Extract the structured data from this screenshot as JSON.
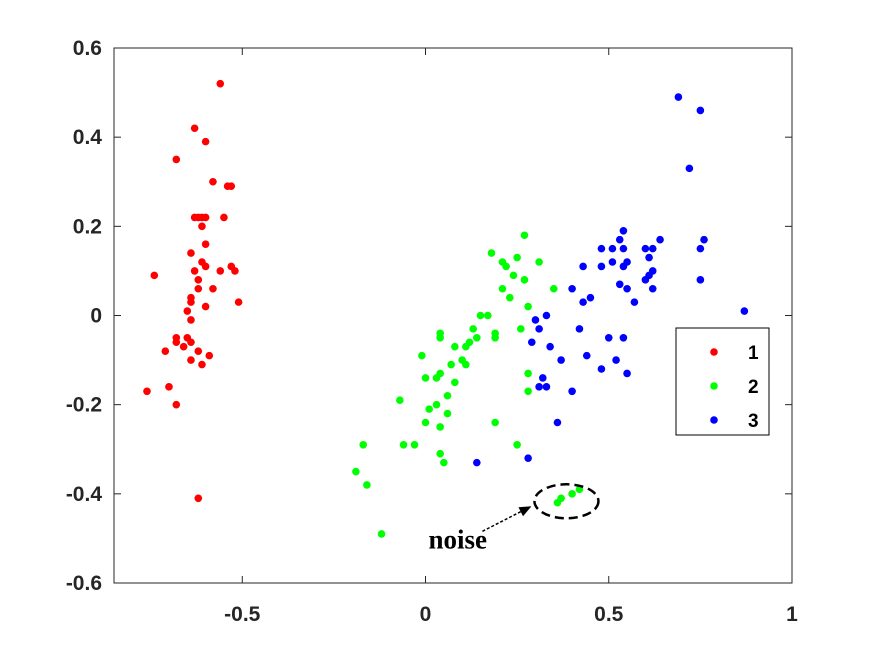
{
  "chart_data": {
    "type": "scatter",
    "title": "",
    "xlabel": "",
    "ylabel": "",
    "xlim": [
      -0.85,
      1.0
    ],
    "ylim": [
      -0.6,
      0.6
    ],
    "xticks": [
      -0.5,
      0,
      0.5,
      1
    ],
    "xtick_labels": [
      "-0.5",
      "0",
      "0.5",
      "1"
    ],
    "yticks": [
      -0.6,
      -0.4,
      -0.2,
      0,
      0.2,
      0.4,
      0.6
    ],
    "ytick_labels": [
      "-0.6",
      "-0.4",
      "-0.2",
      "0",
      "0.2",
      "0.4",
      "0.6"
    ],
    "grid": false,
    "legend_position": "right",
    "series": [
      {
        "name": "1",
        "color": "#ff0000",
        "points": [
          [
            -0.56,
            0.52
          ],
          [
            -0.63,
            0.42
          ],
          [
            -0.6,
            0.39
          ],
          [
            -0.68,
            0.35
          ],
          [
            -0.58,
            0.3
          ],
          [
            -0.53,
            0.29
          ],
          [
            -0.54,
            0.29
          ],
          [
            -0.63,
            0.22
          ],
          [
            -0.62,
            0.22
          ],
          [
            -0.61,
            0.22
          ],
          [
            -0.6,
            0.22
          ],
          [
            -0.55,
            0.22
          ],
          [
            -0.61,
            0.2
          ],
          [
            -0.6,
            0.16
          ],
          [
            -0.64,
            0.14
          ],
          [
            -0.61,
            0.12
          ],
          [
            -0.6,
            0.11
          ],
          [
            -0.53,
            0.11
          ],
          [
            -0.52,
            0.1
          ],
          [
            -0.56,
            0.1
          ],
          [
            -0.63,
            0.1
          ],
          [
            -0.74,
            0.09
          ],
          [
            -0.62,
            0.08
          ],
          [
            -0.58,
            0.06
          ],
          [
            -0.62,
            0.06
          ],
          [
            -0.64,
            0.04
          ],
          [
            -0.64,
            0.03
          ],
          [
            -0.6,
            0.02
          ],
          [
            -0.65,
            0.01
          ],
          [
            -0.51,
            0.03
          ],
          [
            -0.64,
            -0.01
          ],
          [
            -0.68,
            -0.05
          ],
          [
            -0.65,
            -0.05
          ],
          [
            -0.64,
            -0.06
          ],
          [
            -0.68,
            -0.06
          ],
          [
            -0.66,
            -0.07
          ],
          [
            -0.62,
            -0.08
          ],
          [
            -0.71,
            -0.08
          ],
          [
            -0.59,
            -0.09
          ],
          [
            -0.64,
            -0.1
          ],
          [
            -0.61,
            -0.11
          ],
          [
            -0.7,
            -0.16
          ],
          [
            -0.76,
            -0.17
          ],
          [
            -0.68,
            -0.2
          ],
          [
            -0.62,
            -0.41
          ]
        ]
      },
      {
        "name": "2",
        "color": "#00ff00",
        "points": [
          [
            0.27,
            0.18
          ],
          [
            0.18,
            0.14
          ],
          [
            0.25,
            0.13
          ],
          [
            0.21,
            0.12
          ],
          [
            0.31,
            0.12
          ],
          [
            0.22,
            0.11
          ],
          [
            0.24,
            0.09
          ],
          [
            0.27,
            0.08
          ],
          [
            0.21,
            0.06
          ],
          [
            0.35,
            0.06
          ],
          [
            0.23,
            0.04
          ],
          [
            0.28,
            0.02
          ],
          [
            0.15,
            0.0
          ],
          [
            0.17,
            0.0
          ],
          [
            0.26,
            -0.03
          ],
          [
            0.13,
            -0.03
          ],
          [
            0.19,
            -0.04
          ],
          [
            0.14,
            -0.05
          ],
          [
            0.04,
            -0.04
          ],
          [
            0.04,
            -0.05
          ],
          [
            0.19,
            -0.05
          ],
          [
            0.12,
            -0.06
          ],
          [
            0.11,
            -0.07
          ],
          [
            0.08,
            -0.07
          ],
          [
            -0.01,
            -0.09
          ],
          [
            0.1,
            -0.1
          ],
          [
            0.07,
            -0.11
          ],
          [
            0.11,
            -0.11
          ],
          [
            0.04,
            -0.13
          ],
          [
            0.28,
            -0.13
          ],
          [
            0.0,
            -0.14
          ],
          [
            0.03,
            -0.14
          ],
          [
            0.08,
            -0.15
          ],
          [
            0.06,
            -0.18
          ],
          [
            0.28,
            -0.17
          ],
          [
            0.03,
            -0.2
          ],
          [
            -0.07,
            -0.19
          ],
          [
            0.06,
            -0.22
          ],
          [
            0.01,
            -0.21
          ],
          [
            0.0,
            -0.24
          ],
          [
            0.19,
            -0.24
          ],
          [
            0.04,
            -0.25
          ],
          [
            -0.06,
            -0.29
          ],
          [
            -0.03,
            -0.29
          ],
          [
            -0.17,
            -0.29
          ],
          [
            0.25,
            -0.29
          ],
          [
            0.04,
            -0.31
          ],
          [
            0.05,
            -0.33
          ],
          [
            -0.19,
            -0.35
          ],
          [
            -0.16,
            -0.38
          ],
          [
            0.42,
            -0.39
          ],
          [
            0.4,
            -0.4
          ],
          [
            0.37,
            -0.41
          ],
          [
            0.36,
            -0.42
          ],
          [
            -0.12,
            -0.49
          ]
        ]
      },
      {
        "name": "3",
        "color": "#0000ff",
        "points": [
          [
            0.69,
            0.49
          ],
          [
            0.75,
            0.46
          ],
          [
            0.72,
            0.33
          ],
          [
            0.54,
            0.19
          ],
          [
            0.62,
            0.15
          ],
          [
            0.6,
            0.15
          ],
          [
            0.64,
            0.17
          ],
          [
            0.53,
            0.17
          ],
          [
            0.48,
            0.15
          ],
          [
            0.75,
            0.15
          ],
          [
            0.76,
            0.17
          ],
          [
            0.51,
            0.15
          ],
          [
            0.54,
            0.15
          ],
          [
            0.61,
            0.13
          ],
          [
            0.55,
            0.12
          ],
          [
            0.54,
            0.11
          ],
          [
            0.48,
            0.11
          ],
          [
            0.43,
            0.11
          ],
          [
            0.51,
            0.12
          ],
          [
            0.62,
            0.1
          ],
          [
            0.61,
            0.09
          ],
          [
            0.6,
            0.08
          ],
          [
            0.75,
            0.08
          ],
          [
            0.53,
            0.07
          ],
          [
            0.55,
            0.06
          ],
          [
            0.4,
            0.06
          ],
          [
            0.62,
            0.06
          ],
          [
            0.45,
            0.04
          ],
          [
            0.43,
            0.03
          ],
          [
            0.57,
            0.03
          ],
          [
            0.87,
            0.01
          ],
          [
            0.33,
            0.0
          ],
          [
            0.3,
            -0.01
          ],
          [
            0.31,
            -0.03
          ],
          [
            0.42,
            -0.03
          ],
          [
            0.5,
            -0.05
          ],
          [
            0.54,
            -0.05
          ],
          [
            0.29,
            -0.06
          ],
          [
            0.34,
            -0.07
          ],
          [
            0.44,
            -0.09
          ],
          [
            0.37,
            -0.1
          ],
          [
            0.52,
            -0.1
          ],
          [
            0.48,
            -0.12
          ],
          [
            0.55,
            -0.13
          ],
          [
            0.32,
            -0.14
          ],
          [
            0.33,
            -0.16
          ],
          [
            0.31,
            -0.16
          ],
          [
            0.4,
            -0.17
          ],
          [
            0.36,
            -0.24
          ],
          [
            0.28,
            -0.32
          ],
          [
            0.14,
            -0.33
          ]
        ]
      }
    ],
    "annotations": [
      {
        "text": "noise",
        "target": [
          0.39,
          -0.41
        ]
      }
    ]
  }
}
